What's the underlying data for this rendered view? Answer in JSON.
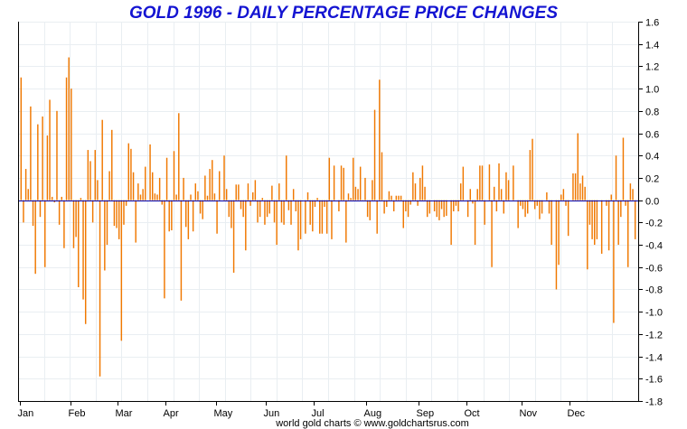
{
  "chart_data": {
    "type": "bar",
    "title": "GOLD 1996 - DAILY PERCENTAGE PRICE CHANGES",
    "footer": "world gold charts © www.goldchartsrus.com",
    "xlabel": "",
    "ylabel": "",
    "ylim": [
      -1.8,
      1.6
    ],
    "y_ticks": [
      1.6,
      1.4,
      1.2,
      1.0,
      0.8,
      0.6,
      0.4,
      0.2,
      0.0,
      -0.2,
      -0.4,
      -0.6,
      -0.8,
      -1.0,
      -1.2,
      -1.4,
      -1.6,
      -1.8
    ],
    "y_tick_labels": [
      "1.6",
      "1.4",
      "1.2",
      "1.0",
      "0.8",
      "0.6",
      "0.4",
      "0.2",
      "0.0",
      "-0.2",
      "-0.4",
      "-0.6",
      "-0.8",
      "-1.0",
      "-1.2",
      "-1.4",
      "-1.6",
      "-1.8"
    ],
    "month_labels": [
      "Jan",
      "Feb",
      "Mar",
      "Apr",
      "May",
      "Jun",
      "Jul",
      "Aug",
      "Sep",
      "Oct",
      "Nov",
      "Dec"
    ],
    "month_start_index": [
      0,
      21,
      41,
      61,
      82,
      103,
      123,
      145,
      167,
      187,
      210,
      230
    ],
    "grid": true,
    "series_color": "#f07800",
    "values": [
      1.1,
      -0.2,
      0.28,
      0.1,
      0.84,
      -0.23,
      -0.66,
      0.68,
      -0.15,
      0.75,
      -0.6,
      0.58,
      0.9,
      0.03,
      -0.02,
      0.8,
      -0.22,
      0.03,
      -0.43,
      1.1,
      1.28,
      1.0,
      -0.43,
      -0.33,
      -0.78,
      0.02,
      -0.89,
      -1.11,
      0.45,
      0.35,
      -0.2,
      0.45,
      0.18,
      -1.58,
      0.72,
      -0.63,
      -0.4,
      0.26,
      0.63,
      -0.23,
      -0.25,
      -0.35,
      -1.26,
      -0.22,
      -0.05,
      0.51,
      0.46,
      0.25,
      -0.38,
      0.15,
      0.05,
      0.1,
      0.3,
      0.0,
      0.5,
      0.25,
      0.06,
      0.05,
      0.2,
      -0.04,
      -0.88,
      0.38,
      -0.28,
      -0.27,
      0.44,
      0.05,
      0.78,
      -0.9,
      0.2,
      -0.24,
      -0.35,
      0.05,
      -0.28,
      0.15,
      0.08,
      -0.12,
      -0.17,
      0.22,
      0.04,
      0.28,
      0.36,
      0.06,
      -0.3,
      0.26,
      0.0,
      0.4,
      0.1,
      -0.15,
      -0.25,
      -0.65,
      0.14,
      0.14,
      -0.08,
      -0.15,
      -0.45,
      0.15,
      -0.05,
      0.07,
      0.18,
      -0.2,
      -0.15,
      0.02,
      -0.22,
      -0.15,
      -0.12,
      0.13,
      -0.2,
      -0.4,
      0.15,
      -0.2,
      -0.22,
      0.4,
      -0.09,
      -0.22,
      0.1,
      -0.1,
      -0.45,
      -0.35,
      0.0,
      -0.3,
      0.07,
      -0.22,
      -0.28,
      -0.06,
      0.02,
      -0.3,
      -0.3,
      -0.06,
      -0.3,
      0.38,
      -0.35,
      0.31,
      0.0,
      -0.1,
      0.31,
      0.29,
      -0.38,
      0.06,
      0.02,
      0.38,
      0.12,
      0.1,
      0.3,
      -0.01,
      0.2,
      -0.15,
      -0.18,
      0.18,
      0.81,
      -0.3,
      1.08,
      0.43,
      -0.12,
      -0.06,
      0.08,
      0.04,
      -0.1,
      0.04,
      0.04,
      0.04,
      -0.25,
      -0.1,
      -0.15,
      -0.04,
      0.25,
      0.15,
      -0.05,
      0.2,
      0.31,
      0.12,
      -0.15,
      -0.12,
      0.0,
      -0.1,
      -0.15,
      -0.18,
      -0.08,
      -0.15,
      -0.14,
      0.0,
      -0.4,
      -0.1,
      -0.05,
      -0.1,
      0.15,
      0.3,
      0.0,
      -0.15,
      0.1,
      -0.03,
      -0.4,
      0.1,
      0.31,
      0.31,
      -0.22,
      0.0,
      0.32,
      -0.6,
      0.12,
      -0.1,
      0.33,
      0.1,
      -0.12,
      0.25,
      0.18,
      0.0,
      0.31,
      0.0,
      -0.25,
      -0.05,
      -0.08,
      -0.15,
      -0.12,
      0.45,
      0.55,
      -0.08,
      -0.05,
      -0.17,
      -0.12,
      0.0,
      0.07,
      -0.12,
      -0.4,
      0.0,
      -0.8,
      -0.58,
      0.05,
      0.1,
      -0.05,
      -0.32,
      0.0,
      0.24,
      0.24,
      0.6,
      0.15,
      0.22,
      0.12,
      -0.62,
      -0.22,
      -0.35,
      -0.4,
      -0.35,
      0.0,
      -0.48,
      0.0,
      -0.05,
      -0.45,
      0.05,
      -1.1,
      0.4,
      -0.4,
      -0.15,
      0.56,
      -0.05,
      -0.6,
      0.15,
      0.1,
      -0.35
    ]
  }
}
